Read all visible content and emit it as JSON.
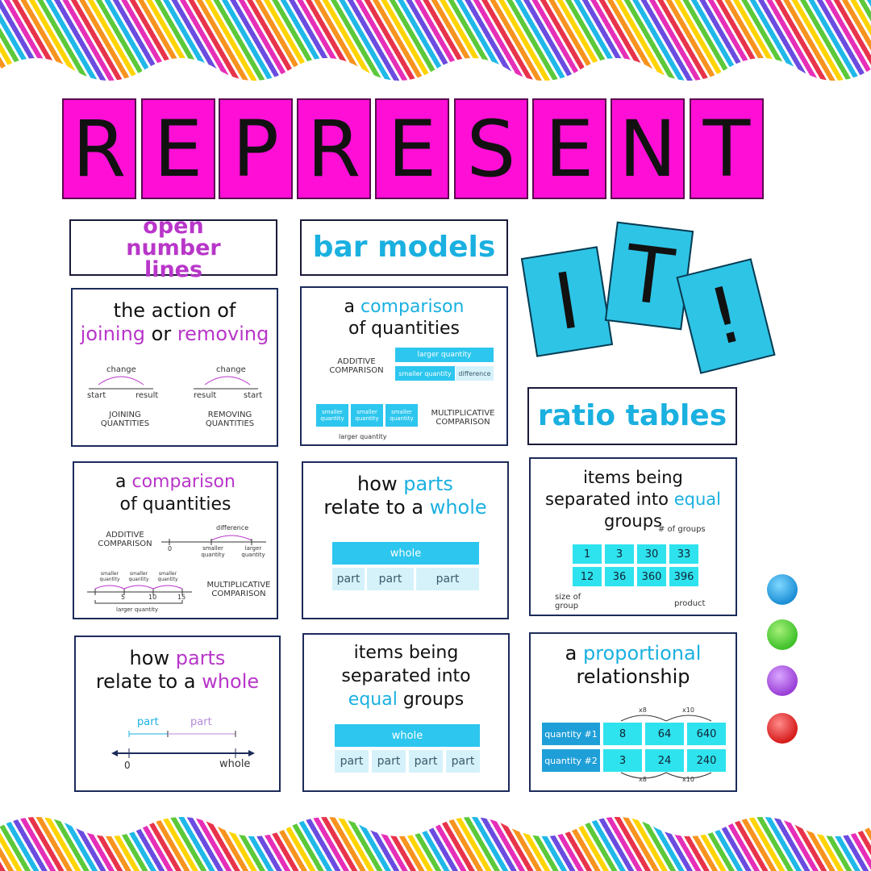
{
  "title": {
    "letters": [
      "R",
      "E",
      "P",
      "R",
      "E",
      "S",
      "E",
      "N",
      "T"
    ],
    "it": [
      "I",
      "T",
      "!"
    ]
  },
  "headers": {
    "open_number_lines": "open number lines",
    "bar_models": "bar models",
    "ratio_tables": "ratio tables"
  },
  "card1": {
    "line1": "the action of",
    "joining": "joining",
    "or": " or ",
    "removing": "removing",
    "change_left": "change",
    "start_left": "start",
    "result_left": "result",
    "joining_label": "JOINING QUANTITIES",
    "change_right": "change",
    "result_right": "result",
    "start_right": "start",
    "removing_label": "REMOVING QUANTITIES"
  },
  "card2": {
    "a": "a ",
    "comparison": "comparison",
    "line2": "of quantities",
    "additive": "ADDITIVE COMPARISON",
    "larger": "larger quantity",
    "smaller": "smaller quantity",
    "difference": "difference",
    "box": "smaller quantity",
    "multiplicative": "MULTIPLICATIVE COMPARISON",
    "larger_bottom": "larger quantity"
  },
  "card3": {
    "a": "a ",
    "comparison": "comparison",
    "line2": "of quantities",
    "additive": "ADDITIVE COMPARISON",
    "difference": "difference",
    "zero": "0",
    "smaller": "smaller quantity",
    "larger": "larger quantity",
    "small_q": "smaller quantity",
    "multiplicative": "MULTIPLICATIVE COMPARISON",
    "ticks": [
      "5",
      "10",
      "15"
    ],
    "larger_bottom": "larger quantity"
  },
  "card4": {
    "how": "how ",
    "parts": "parts",
    "line2a": "relate to a ",
    "whole": "whole",
    "whole_bar": "whole",
    "parts_row": [
      "part",
      "part",
      "part"
    ]
  },
  "card5": {
    "line1": "items being separated into",
    "equal": "equal",
    "groups": " groups",
    "num_groups": "# of groups",
    "row1": [
      "1",
      "3",
      "30",
      "33"
    ],
    "row2": [
      "12",
      "36",
      "360",
      "396"
    ],
    "size_of_group": "size of group",
    "product": "product"
  },
  "card6": {
    "how": "how ",
    "parts": "parts",
    "line2a": "relate to a ",
    "whole": "whole",
    "part1": "part",
    "part2": "part",
    "zero": "0",
    "whole_label": "whole"
  },
  "card7": {
    "line1": "items being",
    "line2": "separated into",
    "equal": "equal",
    "groups": " groups",
    "whole_bar": "whole",
    "parts_row": [
      "part",
      "part",
      "part",
      "part"
    ]
  },
  "card8": {
    "a": "a ",
    "proportional": "proportional",
    "line2": "relationship",
    "q1": "quantity #1",
    "q2": "quantity #2",
    "row1": [
      "8",
      "64",
      "640"
    ],
    "row2": [
      "3",
      "24",
      "240"
    ],
    "x8": "x8",
    "x10": "x10"
  },
  "colors": {
    "magenta": "#ff0fd6",
    "cyan": "#2ec4e6",
    "purple": "#b836c9",
    "blue": "#1ab0e0"
  },
  "pins": [
    "blue-pin",
    "green-pin",
    "purple-pin",
    "red-pin"
  ]
}
